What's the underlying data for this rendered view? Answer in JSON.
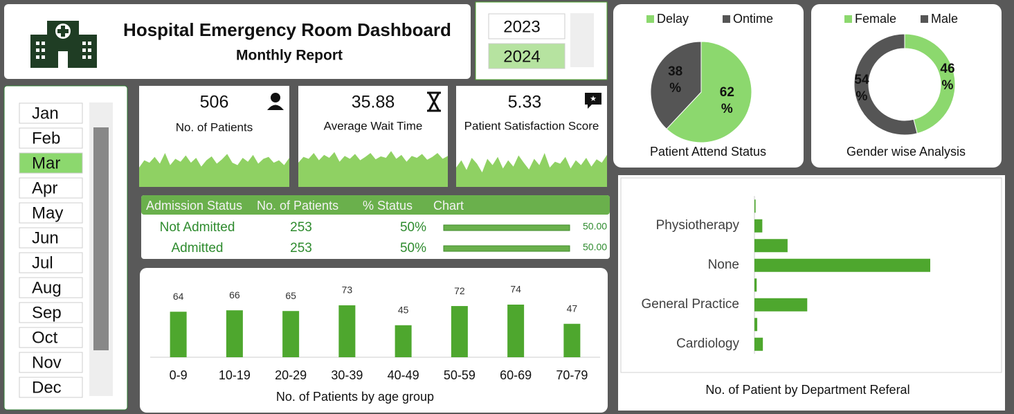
{
  "header": {
    "title": "Hospital Emergency Room Dashboard",
    "subtitle": "Monthly Report"
  },
  "years": [
    {
      "label": "2023",
      "selected": false
    },
    {
      "label": "2024",
      "selected": true
    }
  ],
  "months": [
    {
      "label": "Jan",
      "selected": false
    },
    {
      "label": "Feb",
      "selected": false
    },
    {
      "label": "Mar",
      "selected": true
    },
    {
      "label": "Apr",
      "selected": false
    },
    {
      "label": "May",
      "selected": false
    },
    {
      "label": "Jun",
      "selected": false
    },
    {
      "label": "Jul",
      "selected": false
    },
    {
      "label": "Aug",
      "selected": false
    },
    {
      "label": "Sep",
      "selected": false
    },
    {
      "label": "Oct",
      "selected": false
    },
    {
      "label": "Nov",
      "selected": false
    },
    {
      "label": "Dec",
      "selected": false
    }
  ],
  "kpis": [
    {
      "value": 506,
      "label": "No. of Patients",
      "sparkline": [
        40,
        55,
        50,
        62,
        48,
        70,
        45,
        58,
        52,
        65,
        50,
        60,
        42,
        55,
        63,
        48,
        57,
        68,
        50,
        45,
        60,
        52,
        66,
        48,
        58,
        62,
        50,
        55,
        45,
        60
      ]
    },
    {
      "value": 35.88,
      "label": "Average Wait Time",
      "sparkline": [
        50,
        62,
        58,
        70,
        55,
        66,
        60,
        72,
        52,
        64,
        58,
        68,
        55,
        62,
        70,
        57,
        63,
        60,
        74,
        58,
        66,
        52,
        64,
        60,
        68,
        56,
        62,
        70,
        58,
        64
      ]
    },
    {
      "value": 5.33,
      "label": "Patient Satisfaction Score",
      "sparkline": [
        40,
        55,
        35,
        60,
        48,
        30,
        58,
        45,
        62,
        38,
        55,
        42,
        65,
        50,
        36,
        58,
        45,
        70,
        40,
        52,
        48,
        62,
        38,
        55,
        45,
        60,
        42,
        57,
        50,
        66
      ]
    }
  ],
  "admission_table": {
    "columns": [
      "Admission Status",
      "No. of Patients",
      "% Status",
      "Chart"
    ],
    "rows": [
      {
        "status": "Not Admitted",
        "patients": 253,
        "pct": "50%",
        "bar": {
          "value": 50,
          "label": "50.00"
        }
      },
      {
        "status": "Admitted",
        "patients": 253,
        "pct": "50%",
        "bar": {
          "value": 50,
          "label": "50.00"
        }
      }
    ]
  },
  "chart_data": [
    {
      "type": "pie",
      "title": "Patient Attend Status",
      "categories": [
        "Delay",
        "Ontime"
      ],
      "values": [
        62,
        38
      ],
      "value_labels": [
        "62 %",
        "38 %"
      ],
      "colors": [
        "#8cd86e",
        "#555555"
      ],
      "legend": "top"
    },
    {
      "type": "donut",
      "title": "Gender wise Analysis",
      "categories": [
        "Female",
        "Male"
      ],
      "values": [
        46,
        54
      ],
      "value_labels": [
        "46 %",
        "54 %"
      ],
      "colors": [
        "#8cd86e",
        "#555555"
      ],
      "legend": "top"
    },
    {
      "type": "bar",
      "title": "No. of Patients by age group",
      "categories": [
        "0-9",
        "10-19",
        "20-29",
        "30-39",
        "40-49",
        "50-59",
        "60-69",
        "70-79"
      ],
      "values": [
        64,
        66,
        65,
        73,
        45,
        72,
        74,
        47
      ],
      "color": "#4ea72e"
    },
    {
      "type": "hbar",
      "title": "No. of Patient by Department Referal",
      "categories": [
        null,
        "Physiotherapy",
        null,
        "None",
        null,
        "General Practice",
        null,
        "Cardiology"
      ],
      "values": [
        2,
        14,
        59,
        313,
        4,
        94,
        5,
        15
      ],
      "color": "#4ea72e"
    }
  ]
}
